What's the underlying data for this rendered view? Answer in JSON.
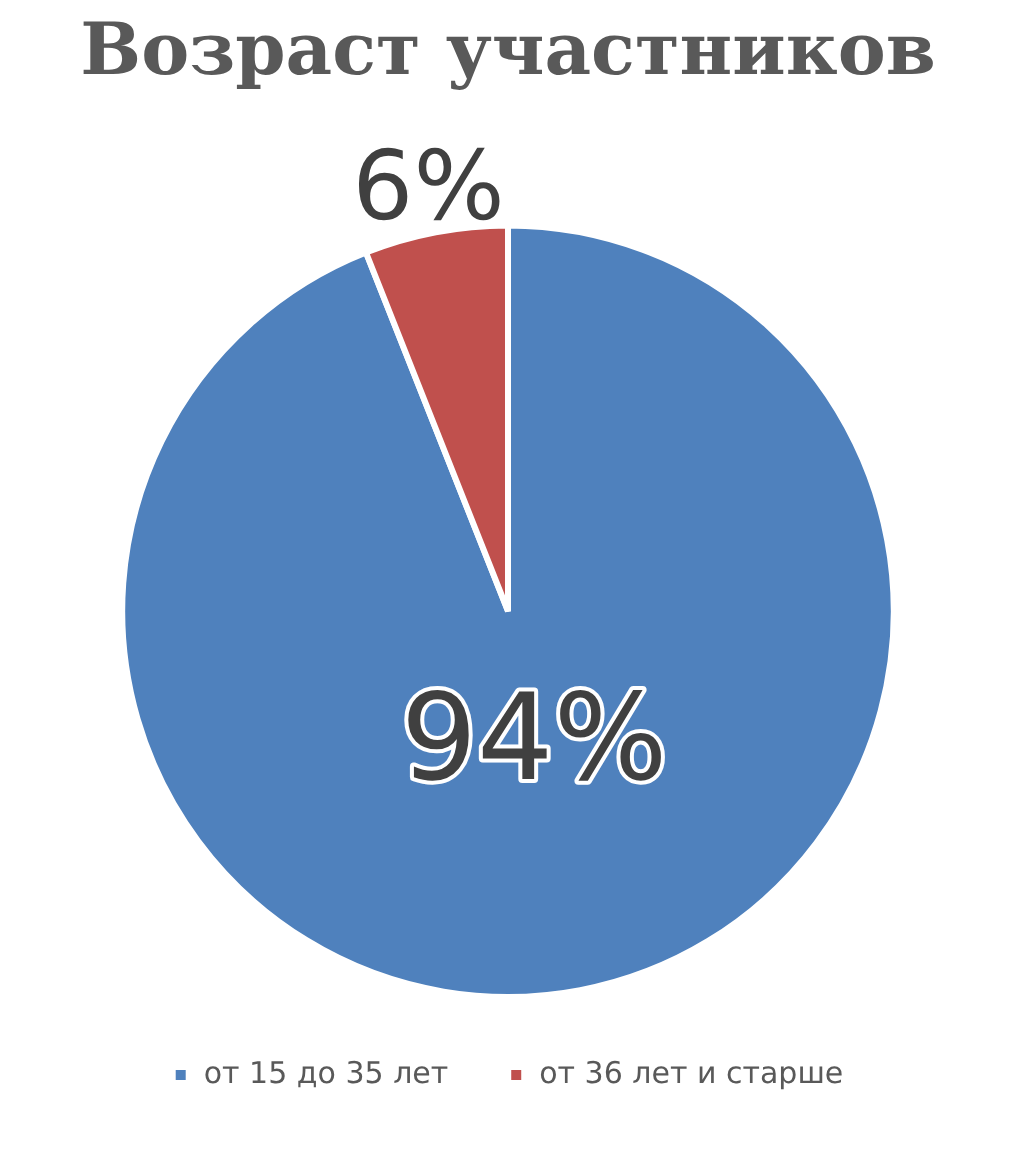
{
  "chart_data": {
    "type": "pie",
    "title": "Возраст участников",
    "categories": [
      "от 15 до 35 лет",
      "от 36 лет и старше"
    ],
    "values": [
      94,
      6
    ],
    "colors": [
      "#4f81bd",
      "#c0504d"
    ],
    "value_labels": [
      "94%",
      "6%"
    ],
    "legend": "bottom"
  }
}
